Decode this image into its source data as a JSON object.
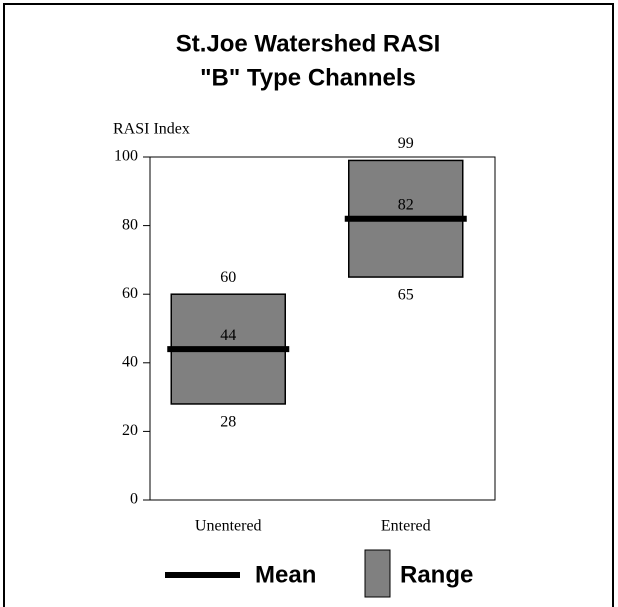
{
  "chart_data": {
    "type": "range",
    "title": "St.Joe Watershed RASI",
    "subtitle": "\"B\" Type Channels",
    "y_label": "RASI Index",
    "categories": [
      "Unentered",
      "Entered"
    ],
    "series": [
      {
        "name": "Mean",
        "color": "#000000",
        "values": [
          44,
          82
        ]
      },
      {
        "name": "Range",
        "color": "#808080",
        "low": [
          28,
          65
        ],
        "high": [
          60,
          99
        ]
      }
    ],
    "ylim": [
      0,
      100
    ],
    "yticks": [
      0,
      20,
      40,
      60,
      80,
      100
    ],
    "legend": "bottom"
  }
}
